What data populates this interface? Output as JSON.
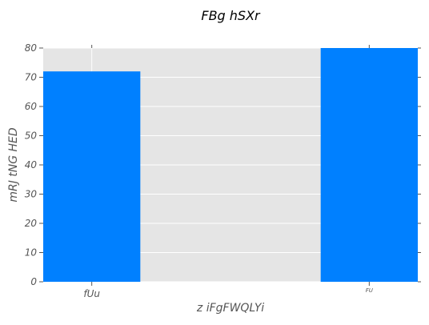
{
  "chart_data": {
    "type": "bar",
    "title": "FBg hSXr",
    "xlabel": "z iFgFWQLYi",
    "ylabel": "mRJ tNG HED",
    "categories": [
      "fUu",
      "FU"
    ],
    "values": [
      72,
      80
    ],
    "ylim": [
      0,
      80
    ],
    "yticks": [
      0,
      10,
      20,
      30,
      40,
      50,
      60,
      70,
      80
    ],
    "grid": true,
    "bar_color": "#0080ff",
    "plot_background": "#e5e5e5",
    "grid_color": "#ffffff"
  }
}
